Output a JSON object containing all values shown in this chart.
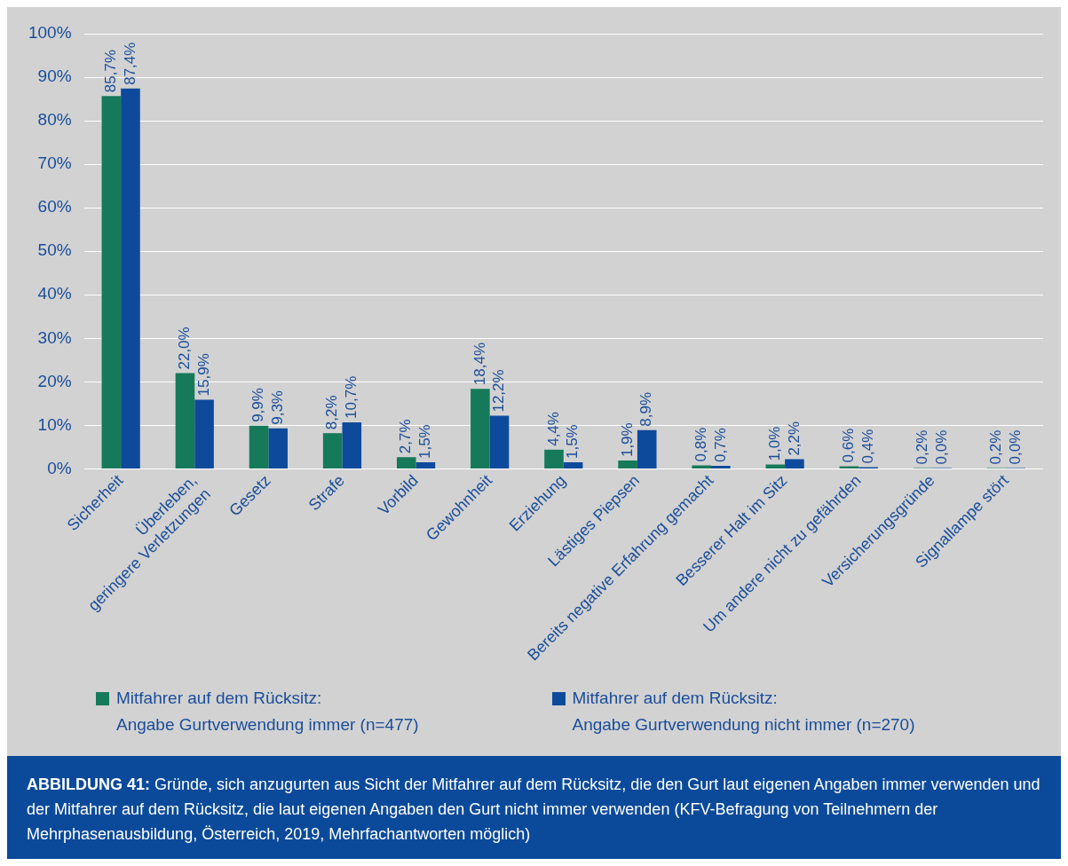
{
  "chart_data": {
    "type": "bar",
    "title": "ABBILDUNG 41:",
    "annotations": [
      "Gründe, sich anzugurten aus Sicht der Mitfahrer auf dem Rücksitz, die den Gurt laut eigenen Angaben immer verwenden und der Mitfahrer auf dem Rücksitz, die laut eigenen Angaben den Gurt nicht immer verwenden (KFV-Befragung von Teilnehmern der Mehrphasenausbildung, Österreich, 2019, Mehrfachantworten möglich)"
    ],
    "categories": [
      "Sicherheit",
      "Überleben,\ngeringere Verletzungen",
      "Gesetz",
      "Strafe",
      "Vorbild",
      "Gewohnheit",
      "Erziehung",
      "Lästiges Piepsen",
      "Bereits negative Erfahrung gemacht",
      "Besserer Halt im Sitz",
      "Um andere nicht zu gefährden",
      "Versicherungsgründe",
      "Signallampe stört"
    ],
    "series": [
      {
        "name": "Mitfahrer auf dem Rücksitz:\nAngabe Gurtverwendung immer (n=477)",
        "color": "#167a5a",
        "values": [
          85.7,
          22.0,
          9.9,
          8.2,
          2.7,
          18.4,
          4.4,
          1.9,
          0.8,
          1.0,
          0.6,
          0.2,
          0.2
        ],
        "value_labels": [
          "85,7%",
          "22,0%",
          "9,9%",
          "8,2%",
          "2,7%",
          "18,4%",
          "4,4%",
          "1,9%",
          "0,8%",
          "1,0%",
          "0,6%",
          "0,2%",
          "0,2%"
        ]
      },
      {
        "name": "Mitfahrer auf dem Rücksitz:\nAngabe Gurtverwendung nicht immer (n=270)",
        "color": "#0d4a9c",
        "values": [
          87.4,
          15.9,
          9.3,
          10.7,
          1.5,
          12.2,
          1.5,
          8.9,
          0.7,
          2.2,
          0.4,
          0.0,
          0.0
        ],
        "value_labels": [
          "87,4%",
          "15,9%",
          "9,3%",
          "10,7%",
          "1,5%",
          "12,2%",
          "1,5%",
          "8,9%",
          "0,7%",
          "2,2%",
          "0,4%",
          "0,0%",
          "0,0%"
        ]
      }
    ],
    "ylim": [
      0,
      100
    ],
    "yticks": [
      {
        "value": 0,
        "label": "0%"
      },
      {
        "value": 10,
        "label": "10%"
      },
      {
        "value": 20,
        "label": "20%"
      },
      {
        "value": 30,
        "label": "30%"
      },
      {
        "value": 40,
        "label": "40%"
      },
      {
        "value": 50,
        "label": "50%"
      },
      {
        "value": 60,
        "label": "60%"
      },
      {
        "value": 70,
        "label": "70%"
      },
      {
        "value": 80,
        "label": "80%"
      },
      {
        "value": 90,
        "label": "90%"
      },
      {
        "value": 100,
        "label": "100%"
      }
    ],
    "grid": "y",
    "legend": "bottom"
  }
}
